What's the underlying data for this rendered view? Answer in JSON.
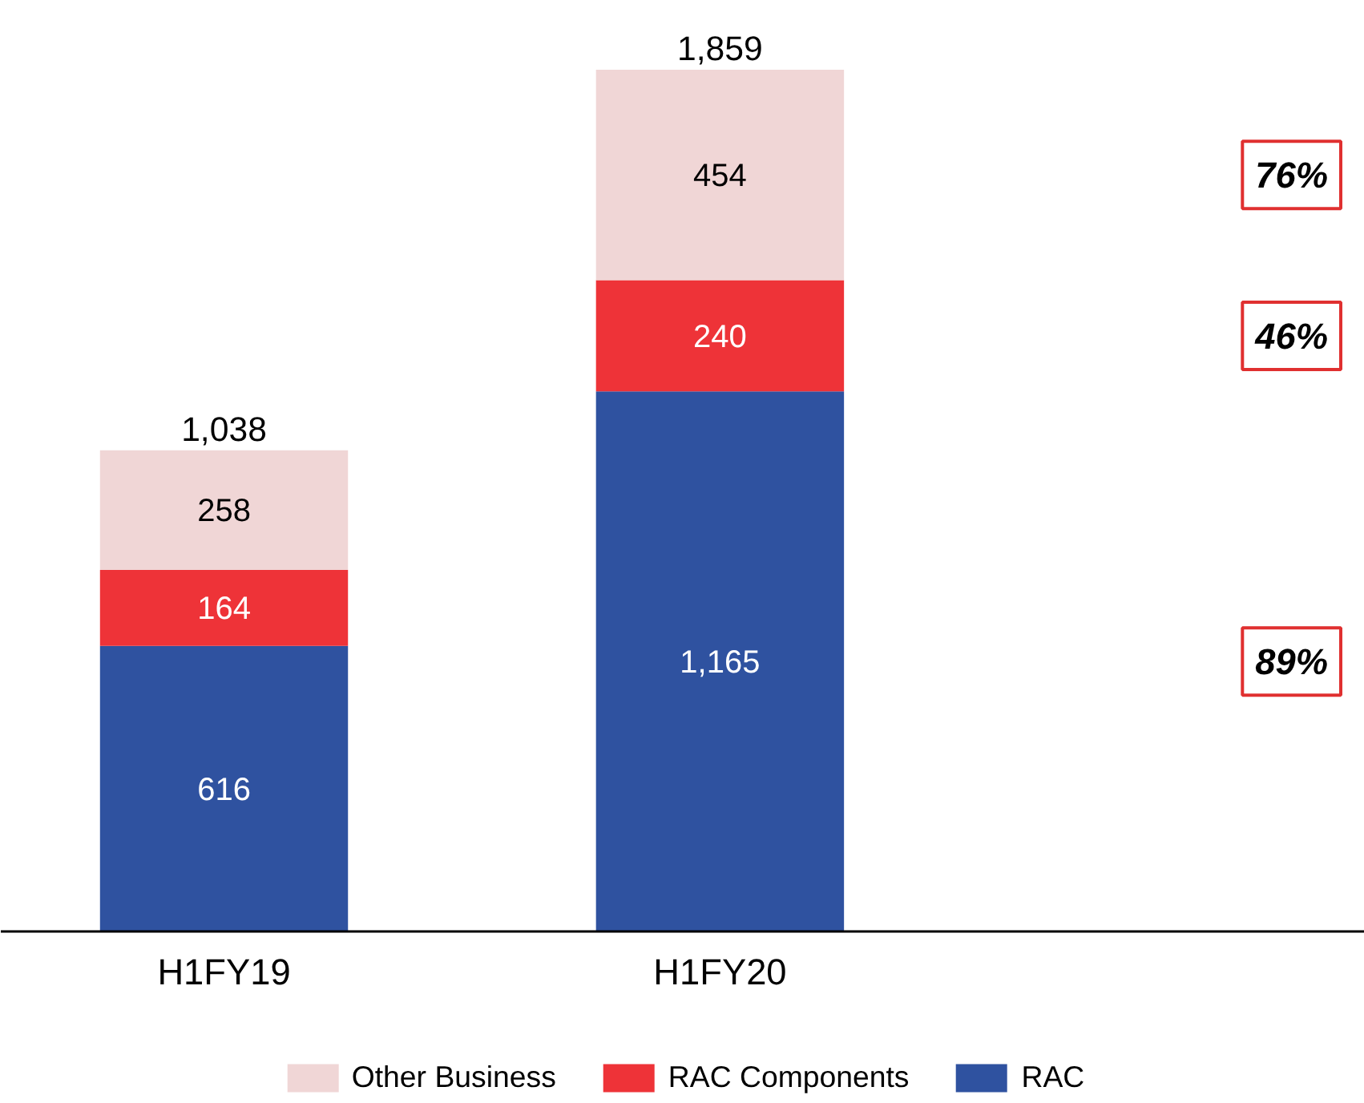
{
  "chart_data": {
    "type": "bar",
    "stacked": true,
    "categories": [
      "H1FY19",
      "H1FY20"
    ],
    "series": [
      {
        "name": "RAC",
        "color": "#2f52a0",
        "values": [
          616,
          1165
        ],
        "value_labels": [
          "616",
          "1,165"
        ]
      },
      {
        "name": "RAC Components",
        "color": "#ee3338",
        "values": [
          164,
          240
        ],
        "value_labels": [
          "164",
          "240"
        ]
      },
      {
        "name": "Other Business",
        "color": "#f0d6d6",
        "values": [
          258,
          454
        ],
        "value_labels": [
          "258",
          "454"
        ]
      }
    ],
    "totals": [
      "1,038",
      "1,859"
    ],
    "annotations": [
      "89%",
      "46%",
      "76%"
    ],
    "legend": "bottom",
    "grid": false
  }
}
